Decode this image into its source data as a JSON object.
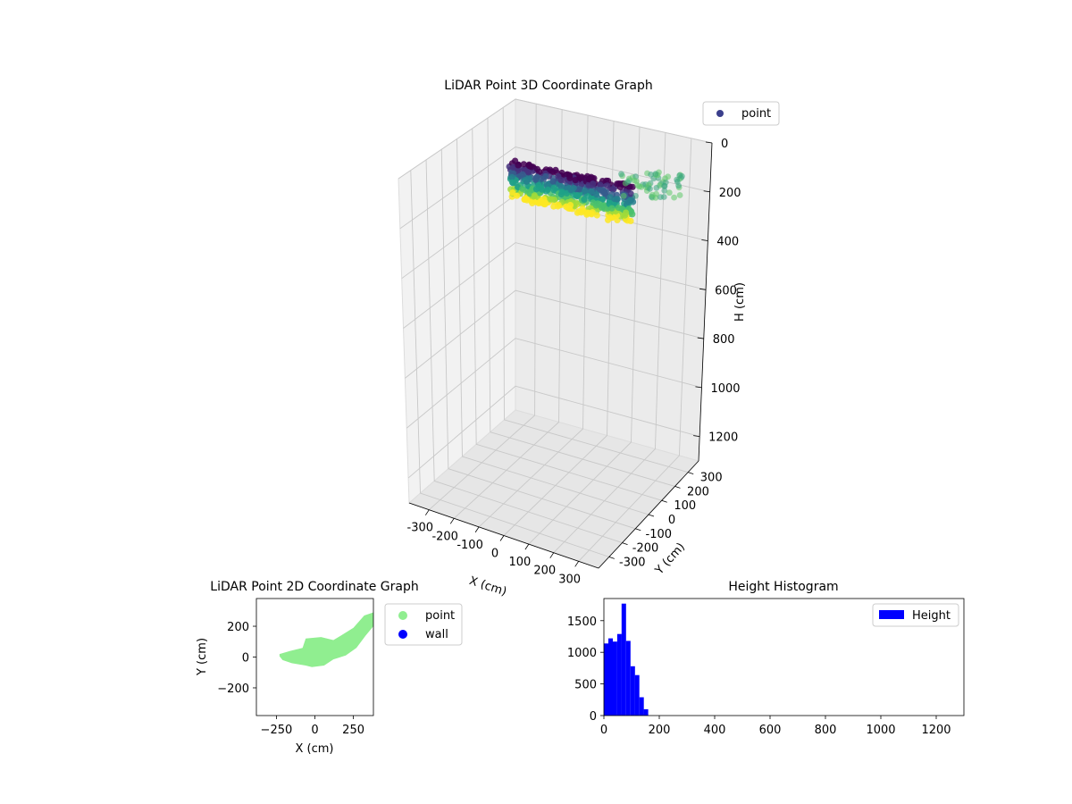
{
  "chart_data": [
    {
      "type": "scatter3d",
      "title": "LiDAR Point 3D Coordinate Graph",
      "xlabel": "X (cm)",
      "ylabel": "Y (cm)",
      "zlabel": "H (cm)",
      "xticks": [
        -300,
        -200,
        -100,
        0,
        100,
        200,
        300
      ],
      "yticks": [
        -300,
        -200,
        -100,
        0,
        100,
        200,
        300
      ],
      "zticks": [
        0,
        200,
        400,
        600,
        800,
        1000,
        1200
      ],
      "xlim": [
        -380,
        380
      ],
      "ylim": [
        -380,
        380
      ],
      "zlim": [
        0,
        1300
      ],
      "z_inverted": true,
      "grid": true,
      "colormap": "viridis",
      "legend": {
        "entries": [
          "point"
        ],
        "placement": "top-right",
        "marker_color": "#3b3f8c"
      }
    },
    {
      "type": "scatter",
      "title": "LiDAR Point 2D Coordinate Graph",
      "xlabel": "X (cm)",
      "ylabel": "Y (cm)",
      "xticks": [
        -250,
        0,
        250
      ],
      "yticks": [
        -200,
        0,
        200
      ],
      "xlim": [
        -380,
        380
      ],
      "ylim": [
        -380,
        380
      ],
      "series": [
        {
          "name": "point",
          "color": "#90ee90"
        },
        {
          "name": "wall",
          "color": "#0000ff"
        }
      ],
      "legend": {
        "placement": "outside-right"
      }
    },
    {
      "type": "bar",
      "title": "Height Histogram",
      "xticks": [
        0,
        200,
        400,
        600,
        800,
        1000,
        1200
      ],
      "yticks": [
        0,
        500,
        1000,
        1500
      ],
      "xlim": [
        0,
        1300
      ],
      "ylim": [
        0,
        1850
      ],
      "bin_edges": [
        0,
        16,
        32,
        48,
        64,
        80,
        96,
        112,
        128,
        144,
        160
      ],
      "values": [
        1140,
        1220,
        1170,
        1290,
        1770,
        1180,
        780,
        640,
        290,
        100
      ],
      "series": [
        {
          "name": "Height",
          "color": "#0000ff"
        }
      ],
      "legend": {
        "placement": "top-right"
      }
    }
  ]
}
